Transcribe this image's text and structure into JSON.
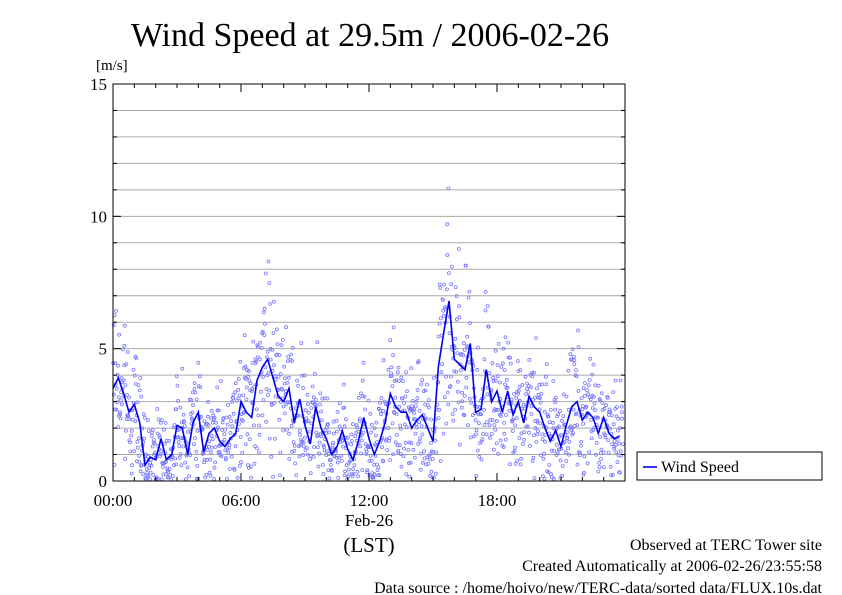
{
  "chart_data": {
    "type": "scatter",
    "title": "Wind Speed at 29.5m / 2006-02-26",
    "ylabel": "[m/s]",
    "xlabel": "(LST)",
    "x_date_label": "Feb-26",
    "xlim_hours": [
      0,
      24
    ],
    "ylim": [
      0,
      15
    ],
    "y_ticks": [
      0,
      5,
      10,
      15
    ],
    "y_grid_step": 1,
    "x_ticks": [
      {
        "hour": 0,
        "label": "00:00"
      },
      {
        "hour": 6,
        "label": "06:00"
      },
      {
        "hour": 12,
        "label": "12:00"
      },
      {
        "hour": 18,
        "label": "18:00"
      }
    ],
    "grid": true,
    "legend_position": "right",
    "series": [
      {
        "name": "Wind Speed",
        "kind": "line",
        "color": "#0000ee",
        "raw_color": "#7777ff",
        "hours": [
          0.0,
          0.25,
          0.5,
          0.75,
          1.0,
          1.25,
          1.5,
          1.75,
          2.0,
          2.25,
          2.5,
          2.75,
          3.0,
          3.25,
          3.5,
          3.75,
          4.0,
          4.25,
          4.5,
          4.75,
          5.0,
          5.25,
          5.5,
          5.75,
          6.0,
          6.25,
          6.5,
          6.75,
          7.0,
          7.25,
          7.5,
          7.75,
          8.0,
          8.25,
          8.5,
          8.75,
          9.0,
          9.25,
          9.5,
          9.75,
          10.0,
          10.25,
          10.5,
          10.75,
          11.0,
          11.25,
          11.5,
          11.75,
          12.0,
          12.25,
          12.5,
          12.75,
          13.0,
          13.25,
          13.5,
          13.75,
          14.0,
          14.25,
          14.5,
          14.75,
          15.0,
          15.25,
          15.5,
          15.75,
          16.0,
          16.25,
          16.5,
          16.75,
          17.0,
          17.25,
          17.5,
          17.75,
          18.0,
          18.25,
          18.5,
          18.75,
          19.0,
          19.25,
          19.5,
          19.75,
          20.0,
          20.25,
          20.5,
          20.75,
          21.0,
          21.25,
          21.5,
          21.75,
          22.0,
          22.25,
          22.5,
          22.75,
          23.0,
          23.25,
          23.5,
          23.75
        ],
        "values": [
          3.5,
          3.9,
          3.3,
          2.6,
          2.9,
          2.2,
          0.6,
          0.9,
          0.8,
          1.6,
          0.8,
          1.0,
          2.1,
          2.0,
          1.0,
          2.2,
          2.6,
          1.1,
          1.8,
          2.0,
          1.5,
          1.3,
          1.6,
          1.8,
          3.0,
          2.6,
          2.4,
          3.8,
          4.3,
          4.6,
          3.9,
          3.2,
          3.0,
          3.5,
          2.2,
          3.1,
          2.1,
          1.4,
          2.8,
          2.0,
          1.6,
          1.0,
          1.3,
          1.9,
          1.2,
          0.8,
          1.5,
          2.4,
          1.6,
          1.0,
          1.5,
          2.2,
          3.3,
          2.8,
          2.6,
          2.6,
          2.0,
          2.3,
          2.5,
          2.0,
          1.5,
          4.3,
          5.6,
          6.8,
          4.6,
          4.4,
          4.2,
          5.2,
          2.6,
          2.7,
          4.2,
          3.0,
          3.4,
          2.6,
          3.4,
          2.5,
          3.0,
          2.2,
          3.2,
          2.8,
          2.6,
          2.0,
          1.5,
          1.9,
          1.3,
          2.1,
          2.8,
          3.0,
          2.3,
          2.6,
          2.4,
          1.8,
          2.4,
          1.8,
          1.6,
          1.7
        ]
      }
    ]
  },
  "notes": {
    "line1": "Observed at TERC Tower site",
    "line2": "Created Automatically at 2006-02-26/23:55:58",
    "line3": "Data source : /home/hoivo/new/TERC-data/sorted  data/FLUX.10s.dat"
  }
}
